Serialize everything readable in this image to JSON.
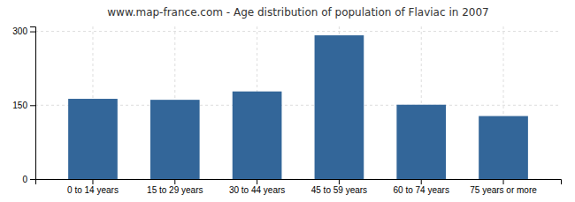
{
  "chart_data": {
    "type": "bar",
    "title": "www.map-france.com - Age distribution of population of Flaviac in 2007",
    "categories": [
      "0 to 14 years",
      "15 to 29 years",
      "30 to 44 years",
      "45 to 59 years",
      "60 to 74 years",
      "75 years or more"
    ],
    "values": [
      163,
      161,
      178,
      292,
      151,
      128
    ],
    "color": "#336699",
    "ylim": [
      0,
      310
    ],
    "yticks": [
      0,
      150,
      300
    ],
    "grid": true
  }
}
